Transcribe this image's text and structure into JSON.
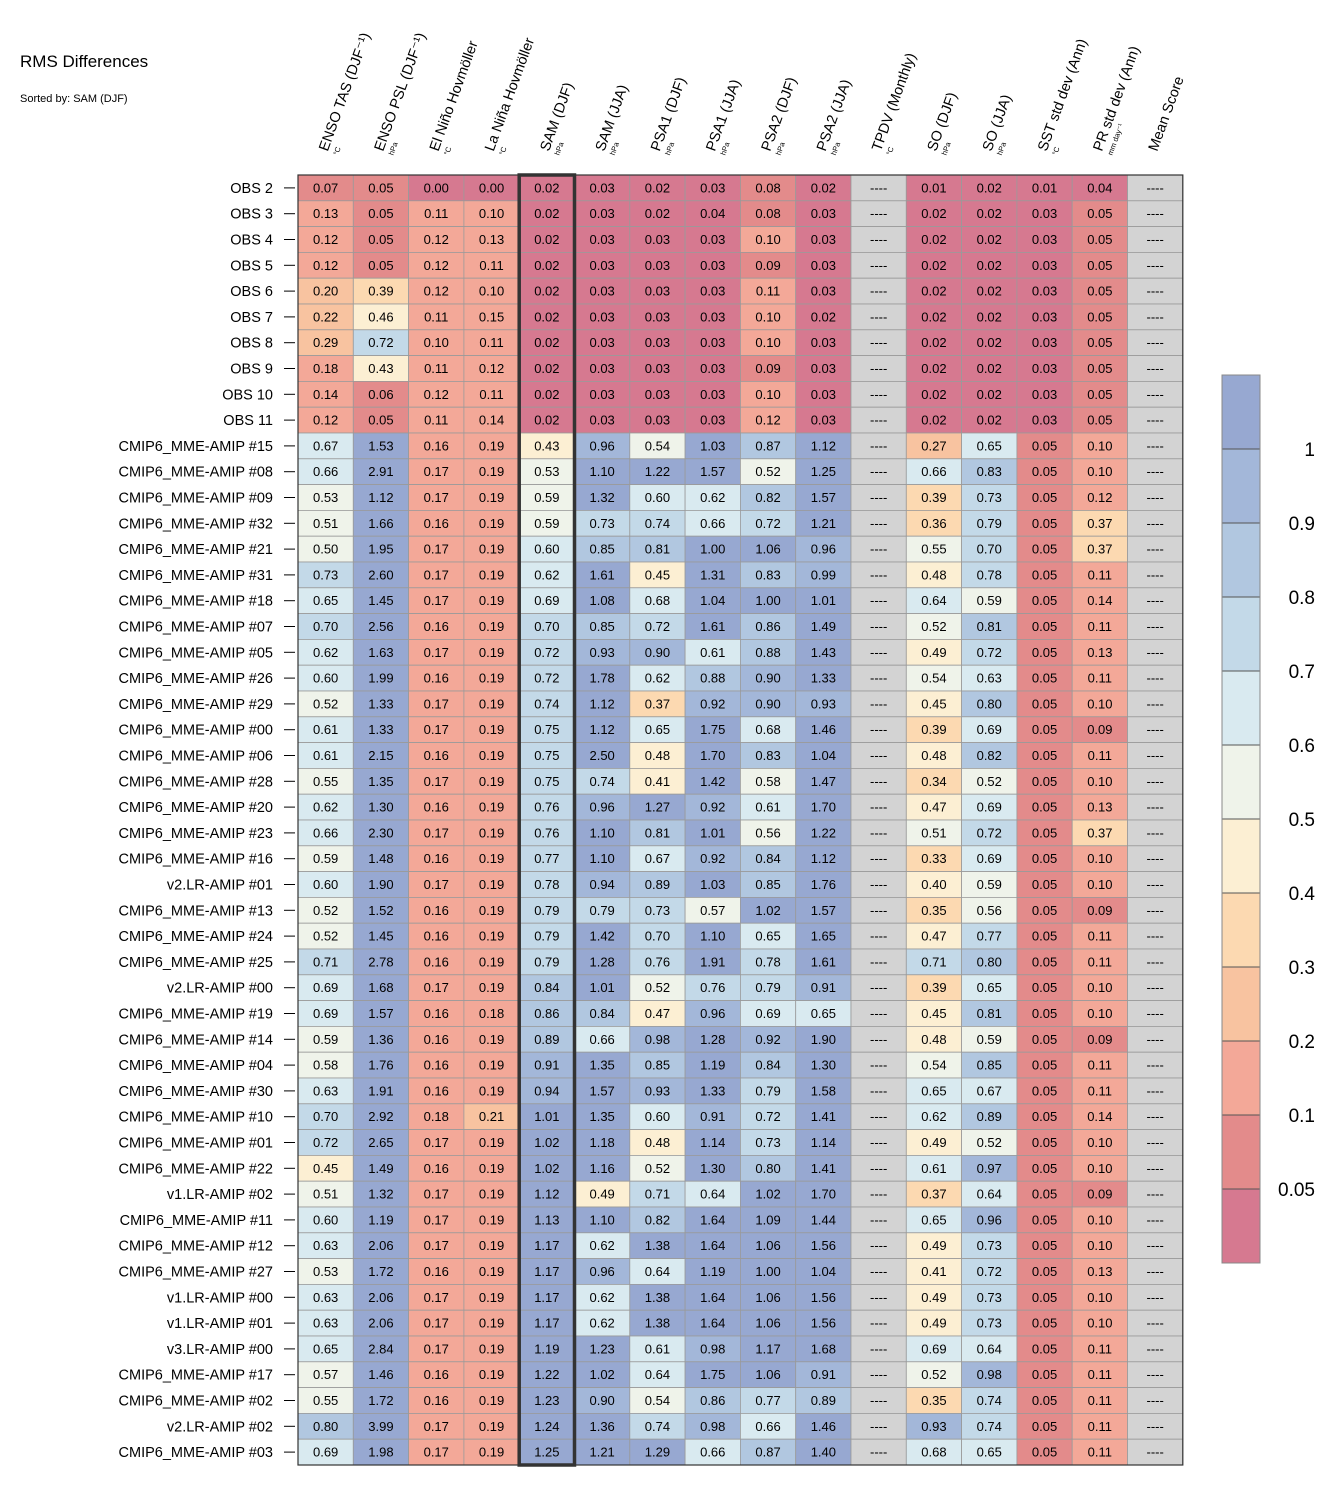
{
  "title": "RMS Differences",
  "subtitle": "Sorted by: SAM (DJF)",
  "chart_data": {
    "type": "heatmap",
    "columns": [
      {
        "label": "ENSO TAS (DJF⁻¹)",
        "unit": "°C"
      },
      {
        "label": "ENSO PSL (DJF⁻¹)",
        "unit": "hPa"
      },
      {
        "label": "El Niño Hovmöller",
        "unit": "°C"
      },
      {
        "label": "La Niña Hovmöller",
        "unit": "°C"
      },
      {
        "label": "SAM (DJF)",
        "unit": "hPa"
      },
      {
        "label": "SAM (JJA)",
        "unit": "hPa"
      },
      {
        "label": "PSA1 (DJF)",
        "unit": "hPa"
      },
      {
        "label": "PSA1 (JJA)",
        "unit": "hPa"
      },
      {
        "label": "PSA2 (DJF)",
        "unit": "hPa"
      },
      {
        "label": "PSA2 (JJA)",
        "unit": "hPa"
      },
      {
        "label": "TPDV (Monthly)",
        "unit": "°C"
      },
      {
        "label": "SO (DJF)",
        "unit": "hPa"
      },
      {
        "label": "SO (JJA)",
        "unit": "hPa"
      },
      {
        "label": "SST std dev (Ann)",
        "unit": "°C"
      },
      {
        "label": "PR std dev (Ann)",
        "unit": "mm day⁻¹"
      },
      {
        "label": "Mean Score",
        "unit": ""
      }
    ],
    "highlight_column": "SAM (DJF)",
    "missing_text": "----",
    "rows": [
      {
        "label": "OBS 2",
        "values": [
          0.07,
          0.05,
          0.0,
          0.0,
          0.02,
          0.03,
          0.02,
          0.03,
          0.08,
          0.02,
          null,
          0.01,
          0.02,
          0.01,
          0.04,
          null
        ]
      },
      {
        "label": "OBS 3",
        "values": [
          0.13,
          0.05,
          0.11,
          0.1,
          0.02,
          0.03,
          0.02,
          0.04,
          0.08,
          0.03,
          null,
          0.02,
          0.02,
          0.03,
          0.05,
          null
        ]
      },
      {
        "label": "OBS 4",
        "values": [
          0.12,
          0.05,
          0.12,
          0.13,
          0.02,
          0.03,
          0.03,
          0.03,
          0.1,
          0.03,
          null,
          0.02,
          0.02,
          0.03,
          0.05,
          null
        ]
      },
      {
        "label": "OBS 5",
        "values": [
          0.12,
          0.05,
          0.12,
          0.11,
          0.02,
          0.03,
          0.03,
          0.03,
          0.09,
          0.03,
          null,
          0.02,
          0.02,
          0.03,
          0.05,
          null
        ]
      },
      {
        "label": "OBS 6",
        "values": [
          0.2,
          0.39,
          0.12,
          0.1,
          0.02,
          0.03,
          0.03,
          0.03,
          0.11,
          0.03,
          null,
          0.02,
          0.02,
          0.03,
          0.05,
          null
        ]
      },
      {
        "label": "OBS 7",
        "values": [
          0.22,
          0.46,
          0.11,
          0.15,
          0.02,
          0.03,
          0.03,
          0.03,
          0.1,
          0.02,
          null,
          0.02,
          0.02,
          0.03,
          0.05,
          null
        ]
      },
      {
        "label": "OBS 8",
        "values": [
          0.29,
          0.72,
          0.1,
          0.11,
          0.02,
          0.03,
          0.03,
          0.03,
          0.1,
          0.03,
          null,
          0.02,
          0.02,
          0.03,
          0.05,
          null
        ]
      },
      {
        "label": "OBS 9",
        "values": [
          0.18,
          0.43,
          0.11,
          0.12,
          0.02,
          0.03,
          0.03,
          0.03,
          0.09,
          0.03,
          null,
          0.02,
          0.02,
          0.03,
          0.05,
          null
        ]
      },
      {
        "label": "OBS 10",
        "values": [
          0.14,
          0.06,
          0.12,
          0.11,
          0.02,
          0.03,
          0.03,
          0.03,
          0.1,
          0.03,
          null,
          0.02,
          0.02,
          0.03,
          0.05,
          null
        ]
      },
      {
        "label": "OBS 11",
        "values": [
          0.12,
          0.05,
          0.11,
          0.14,
          0.02,
          0.03,
          0.03,
          0.03,
          0.12,
          0.03,
          null,
          0.02,
          0.02,
          0.03,
          0.05,
          null
        ]
      },
      {
        "label": "CMIP6_MME-AMIP  #15",
        "values": [
          0.67,
          1.53,
          0.16,
          0.19,
          0.43,
          0.96,
          0.54,
          1.03,
          0.87,
          1.12,
          null,
          0.27,
          0.65,
          0.05,
          0.1,
          null
        ]
      },
      {
        "label": "CMIP6_MME-AMIP  #08",
        "values": [
          0.66,
          2.91,
          0.17,
          0.19,
          0.53,
          1.1,
          1.22,
          1.57,
          0.52,
          1.25,
          null,
          0.66,
          0.83,
          0.05,
          0.1,
          null
        ]
      },
      {
        "label": "CMIP6_MME-AMIP  #09",
        "values": [
          0.53,
          1.12,
          0.17,
          0.19,
          0.59,
          1.32,
          0.6,
          0.62,
          0.82,
          1.57,
          null,
          0.39,
          0.73,
          0.05,
          0.12,
          null
        ]
      },
      {
        "label": "CMIP6_MME-AMIP  #32",
        "values": [
          0.51,
          1.66,
          0.16,
          0.19,
          0.59,
          0.73,
          0.74,
          0.66,
          0.72,
          1.21,
          null,
          0.36,
          0.79,
          0.05,
          0.37,
          null
        ]
      },
      {
        "label": "CMIP6_MME-AMIP  #21",
        "values": [
          0.5,
          1.95,
          0.17,
          0.19,
          0.6,
          0.85,
          0.81,
          1.0,
          1.06,
          0.96,
          null,
          0.55,
          0.7,
          0.05,
          0.37,
          null
        ]
      },
      {
        "label": "CMIP6_MME-AMIP  #31",
        "values": [
          0.73,
          2.6,
          0.17,
          0.19,
          0.62,
          1.61,
          0.45,
          1.31,
          0.83,
          0.99,
          null,
          0.48,
          0.78,
          0.05,
          0.11,
          null
        ]
      },
      {
        "label": "CMIP6_MME-AMIP  #18",
        "values": [
          0.65,
          1.45,
          0.17,
          0.19,
          0.69,
          1.08,
          0.68,
          1.04,
          1.0,
          1.01,
          null,
          0.64,
          0.59,
          0.05,
          0.14,
          null
        ]
      },
      {
        "label": "CMIP6_MME-AMIP  #07",
        "values": [
          0.7,
          2.56,
          0.16,
          0.19,
          0.7,
          0.85,
          0.72,
          1.61,
          0.86,
          1.49,
          null,
          0.52,
          0.81,
          0.05,
          0.11,
          null
        ]
      },
      {
        "label": "CMIP6_MME-AMIP  #05",
        "values": [
          0.62,
          1.63,
          0.17,
          0.19,
          0.72,
          0.93,
          0.9,
          0.61,
          0.88,
          1.43,
          null,
          0.49,
          0.72,
          0.05,
          0.13,
          null
        ]
      },
      {
        "label": "CMIP6_MME-AMIP  #26",
        "values": [
          0.6,
          1.99,
          0.16,
          0.19,
          0.72,
          1.78,
          0.62,
          0.88,
          0.9,
          1.33,
          null,
          0.54,
          0.63,
          0.05,
          0.11,
          null
        ]
      },
      {
        "label": "CMIP6_MME-AMIP  #29",
        "values": [
          0.52,
          1.33,
          0.17,
          0.19,
          0.74,
          1.12,
          0.37,
          0.92,
          0.9,
          0.93,
          null,
          0.45,
          0.8,
          0.05,
          0.1,
          null
        ]
      },
      {
        "label": "CMIP6_MME-AMIP  #00",
        "values": [
          0.61,
          1.33,
          0.17,
          0.19,
          0.75,
          1.12,
          0.65,
          1.75,
          0.68,
          1.46,
          null,
          0.39,
          0.69,
          0.05,
          0.09,
          null
        ]
      },
      {
        "label": "CMIP6_MME-AMIP  #06",
        "values": [
          0.61,
          2.15,
          0.16,
          0.19,
          0.75,
          2.5,
          0.48,
          1.7,
          0.83,
          1.04,
          null,
          0.48,
          0.82,
          0.05,
          0.11,
          null
        ]
      },
      {
        "label": "CMIP6_MME-AMIP  #28",
        "values": [
          0.55,
          1.35,
          0.17,
          0.19,
          0.75,
          0.74,
          0.41,
          1.42,
          0.58,
          1.47,
          null,
          0.34,
          0.52,
          0.05,
          0.1,
          null
        ]
      },
      {
        "label": "CMIP6_MME-AMIP  #20",
        "values": [
          0.62,
          1.3,
          0.16,
          0.19,
          0.76,
          0.96,
          1.27,
          0.92,
          0.61,
          1.7,
          null,
          0.47,
          0.69,
          0.05,
          0.13,
          null
        ]
      },
      {
        "label": "CMIP6_MME-AMIP  #23",
        "values": [
          0.66,
          2.3,
          0.17,
          0.19,
          0.76,
          1.1,
          0.81,
          1.01,
          0.56,
          1.22,
          null,
          0.51,
          0.72,
          0.05,
          0.37,
          null
        ]
      },
      {
        "label": "CMIP6_MME-AMIP  #16",
        "values": [
          0.59,
          1.48,
          0.16,
          0.19,
          0.77,
          1.1,
          0.67,
          0.92,
          0.84,
          1.12,
          null,
          0.33,
          0.69,
          0.05,
          0.1,
          null
        ]
      },
      {
        "label": "v2.LR-AMIP  #01",
        "values": [
          0.6,
          1.9,
          0.17,
          0.19,
          0.78,
          0.94,
          0.89,
          1.03,
          0.85,
          1.76,
          null,
          0.4,
          0.59,
          0.05,
          0.1,
          null
        ]
      },
      {
        "label": "CMIP6_MME-AMIP  #13",
        "values": [
          0.52,
          1.52,
          0.16,
          0.19,
          0.79,
          0.79,
          0.73,
          0.57,
          1.02,
          1.57,
          null,
          0.35,
          0.56,
          0.05,
          0.09,
          null
        ]
      },
      {
        "label": "CMIP6_MME-AMIP  #24",
        "values": [
          0.52,
          1.45,
          0.16,
          0.19,
          0.79,
          1.42,
          0.7,
          1.1,
          0.65,
          1.65,
          null,
          0.47,
          0.77,
          0.05,
          0.11,
          null
        ]
      },
      {
        "label": "CMIP6_MME-AMIP  #25",
        "values": [
          0.71,
          2.78,
          0.16,
          0.19,
          0.79,
          1.28,
          0.76,
          1.91,
          0.78,
          1.61,
          null,
          0.71,
          0.8,
          0.05,
          0.11,
          null
        ]
      },
      {
        "label": "v2.LR-AMIP  #00",
        "values": [
          0.69,
          1.68,
          0.17,
          0.19,
          0.84,
          1.01,
          0.52,
          0.76,
          0.79,
          0.91,
          null,
          0.39,
          0.65,
          0.05,
          0.1,
          null
        ]
      },
      {
        "label": "CMIP6_MME-AMIP  #19",
        "values": [
          0.69,
          1.57,
          0.16,
          0.18,
          0.86,
          0.84,
          0.47,
          0.96,
          0.69,
          0.65,
          null,
          0.45,
          0.81,
          0.05,
          0.1,
          null
        ]
      },
      {
        "label": "CMIP6_MME-AMIP  #14",
        "values": [
          0.59,
          1.36,
          0.16,
          0.19,
          0.89,
          0.66,
          0.98,
          1.28,
          0.92,
          1.9,
          null,
          0.48,
          0.59,
          0.05,
          0.09,
          null
        ]
      },
      {
        "label": "CMIP6_MME-AMIP  #04",
        "values": [
          0.58,
          1.76,
          0.16,
          0.19,
          0.91,
          1.35,
          0.85,
          1.19,
          0.84,
          1.3,
          null,
          0.54,
          0.85,
          0.05,
          0.11,
          null
        ]
      },
      {
        "label": "CMIP6_MME-AMIP  #30",
        "values": [
          0.63,
          1.91,
          0.16,
          0.19,
          0.94,
          1.57,
          0.93,
          1.33,
          0.79,
          1.58,
          null,
          0.65,
          0.67,
          0.05,
          0.11,
          null
        ]
      },
      {
        "label": "CMIP6_MME-AMIP  #10",
        "values": [
          0.7,
          2.92,
          0.18,
          0.21,
          1.01,
          1.35,
          0.6,
          0.91,
          0.72,
          1.41,
          null,
          0.62,
          0.89,
          0.05,
          0.14,
          null
        ]
      },
      {
        "label": "CMIP6_MME-AMIP  #01",
        "values": [
          0.72,
          2.65,
          0.17,
          0.19,
          1.02,
          1.18,
          0.48,
          1.14,
          0.73,
          1.14,
          null,
          0.49,
          0.52,
          0.05,
          0.1,
          null
        ]
      },
      {
        "label": "CMIP6_MME-AMIP  #22",
        "values": [
          0.45,
          1.49,
          0.16,
          0.19,
          1.02,
          1.16,
          0.52,
          1.3,
          0.8,
          1.41,
          null,
          0.61,
          0.97,
          0.05,
          0.1,
          null
        ]
      },
      {
        "label": "v1.LR-AMIP  #02",
        "values": [
          0.51,
          1.32,
          0.17,
          0.19,
          1.12,
          0.49,
          0.71,
          0.64,
          1.02,
          1.7,
          null,
          0.37,
          0.64,
          0.05,
          0.09,
          null
        ]
      },
      {
        "label": "CMIP6_MME-AMIP  #11",
        "values": [
          0.6,
          1.19,
          0.17,
          0.19,
          1.13,
          1.1,
          0.82,
          1.64,
          1.09,
          1.44,
          null,
          0.65,
          0.96,
          0.05,
          0.1,
          null
        ]
      },
      {
        "label": "CMIP6_MME-AMIP  #12",
        "values": [
          0.63,
          2.06,
          0.17,
          0.19,
          1.17,
          0.62,
          1.38,
          1.64,
          1.06,
          1.56,
          null,
          0.49,
          0.73,
          0.05,
          0.1,
          null
        ]
      },
      {
        "label": "CMIP6_MME-AMIP  #27",
        "values": [
          0.53,
          1.72,
          0.16,
          0.19,
          1.17,
          0.96,
          0.64,
          1.19,
          1.0,
          1.04,
          null,
          0.41,
          0.72,
          0.05,
          0.13,
          null
        ]
      },
      {
        "label": "v1.LR-AMIP  #00",
        "values": [
          0.63,
          2.06,
          0.17,
          0.19,
          1.17,
          0.62,
          1.38,
          1.64,
          1.06,
          1.56,
          null,
          0.49,
          0.73,
          0.05,
          0.1,
          null
        ]
      },
      {
        "label": "v1.LR-AMIP  #01",
        "values": [
          0.63,
          2.06,
          0.17,
          0.19,
          1.17,
          0.62,
          1.38,
          1.64,
          1.06,
          1.56,
          null,
          0.49,
          0.73,
          0.05,
          0.1,
          null
        ]
      },
      {
        "label": "v3.LR-AMIP  #00",
        "values": [
          0.65,
          2.84,
          0.17,
          0.19,
          1.19,
          1.23,
          0.61,
          0.98,
          1.17,
          1.68,
          null,
          0.69,
          0.64,
          0.05,
          0.11,
          null
        ]
      },
      {
        "label": "CMIP6_MME-AMIP  #17",
        "values": [
          0.57,
          1.46,
          0.16,
          0.19,
          1.22,
          1.02,
          0.64,
          1.75,
          1.06,
          0.91,
          null,
          0.52,
          0.98,
          0.05,
          0.11,
          null
        ]
      },
      {
        "label": "CMIP6_MME-AMIP  #02",
        "values": [
          0.55,
          1.72,
          0.16,
          0.19,
          1.23,
          0.9,
          0.54,
          0.86,
          0.77,
          0.89,
          null,
          0.35,
          0.74,
          0.05,
          0.11,
          null
        ]
      },
      {
        "label": "v2.LR-AMIP  #02",
        "values": [
          0.8,
          3.99,
          0.17,
          0.19,
          1.24,
          1.36,
          0.74,
          0.98,
          0.66,
          1.46,
          null,
          0.93,
          0.74,
          0.05,
          0.11,
          null
        ]
      },
      {
        "label": "CMIP6_MME-AMIP  #03",
        "values": [
          0.69,
          1.98,
          0.17,
          0.19,
          1.25,
          1.21,
          1.29,
          0.66,
          0.87,
          1.4,
          null,
          0.68,
          0.65,
          0.05,
          0.11,
          null
        ]
      }
    ],
    "colorbar": {
      "tick_labels": [
        "1",
        "0.9",
        "0.8",
        "0.7",
        "0.6",
        "0.5",
        "0.4",
        "0.3",
        "0.2",
        "0.1",
        "0.05"
      ],
      "band_colors": [
        "#97a8d1",
        "#a3b7d9",
        "#b1c7e0",
        "#c3d9e8",
        "#d9eaf0",
        "#eff3ea",
        "#fcefd3",
        "#fcd9b1",
        "#f8c3a0",
        "#f3a898",
        "#e38b8b",
        "#d67990"
      ],
      "missing_color": "#d3d3d3"
    },
    "scale_bounds": [
      0,
      0.05,
      0.1,
      0.2,
      0.3,
      0.4,
      0.5,
      0.6,
      0.7,
      0.8,
      0.9,
      1.0
    ]
  }
}
